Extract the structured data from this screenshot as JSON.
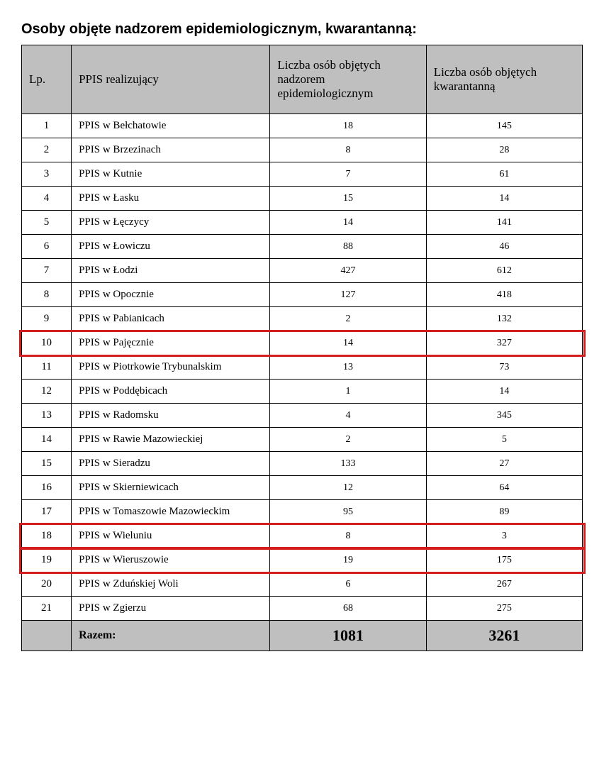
{
  "title": "Osoby objęte nadzorem epidemiologicznym, kwarantanną:",
  "headers": {
    "lp": "Lp.",
    "name": "PPIS realizujący",
    "col1": "Liczba osób objętych nadzorem epidemiologicznym",
    "col2": "Liczba osób objętych kwarantanną"
  },
  "rows": [
    {
      "lp": "1",
      "name": "PPIS w Bełchatowie",
      "v1": "18",
      "v2": "145",
      "hl": false
    },
    {
      "lp": "2",
      "name": "PPIS w Brzezinach",
      "v1": "8",
      "v2": "28",
      "hl": false
    },
    {
      "lp": "3",
      "name": "PPIS w Kutnie",
      "v1": "7",
      "v2": "61",
      "hl": false
    },
    {
      "lp": "4",
      "name": "PPIS w Łasku",
      "v1": "15",
      "v2": "14",
      "hl": false
    },
    {
      "lp": "5",
      "name": "PPIS w Łęczycy",
      "v1": "14",
      "v2": "141",
      "hl": false
    },
    {
      "lp": "6",
      "name": "PPIS w Łowiczu",
      "v1": "88",
      "v2": "46",
      "hl": false
    },
    {
      "lp": "7",
      "name": "PPIS w Łodzi",
      "v1": "427",
      "v2": "612",
      "hl": false
    },
    {
      "lp": "8",
      "name": "PPIS w Opocznie",
      "v1": "127",
      "v2": "418",
      "hl": false
    },
    {
      "lp": "9",
      "name": "PPIS w Pabianicach",
      "v1": "2",
      "v2": "132",
      "hl": false
    },
    {
      "lp": "10",
      "name": "PPIS w Pajęcznie",
      "v1": "14",
      "v2": "327",
      "hl": true
    },
    {
      "lp": "11",
      "name": "PPIS w Piotrkowie Trybunalskim",
      "v1": "13",
      "v2": "73",
      "hl": false
    },
    {
      "lp": "12",
      "name": "PPIS w Poddębicach",
      "v1": "1",
      "v2": "14",
      "hl": false
    },
    {
      "lp": "13",
      "name": "PPIS w Radomsku",
      "v1": "4",
      "v2": "345",
      "hl": false
    },
    {
      "lp": "14",
      "name": "PPIS w Rawie Mazowieckiej",
      "v1": "2",
      "v2": "5",
      "hl": false
    },
    {
      "lp": "15",
      "name": "PPIS w Sieradzu",
      "v1": "133",
      "v2": "27",
      "hl": false
    },
    {
      "lp": "16",
      "name": "PPIS w Skierniewicach",
      "v1": "12",
      "v2": "64",
      "hl": false
    },
    {
      "lp": "17",
      "name": "PPIS w Tomaszowie Mazowieckim",
      "v1": "95",
      "v2": "89",
      "hl": false
    },
    {
      "lp": "18",
      "name": "PPIS w Wieluniu",
      "v1": "8",
      "v2": "3",
      "hl": true
    },
    {
      "lp": "19",
      "name": "PPIS w Wieruszowie",
      "v1": "19",
      "v2": "175",
      "hl": true
    },
    {
      "lp": "20",
      "name": "PPIS w Zduńskiej Woli",
      "v1": "6",
      "v2": "267",
      "hl": false
    },
    {
      "lp": "21",
      "name": "PPIS w Zgierzu",
      "v1": "68",
      "v2": "275",
      "hl": false
    }
  ],
  "footer": {
    "label": "Razem:",
    "v1": "1081",
    "v2": "3261"
  },
  "highlight_color": "#d41e1e"
}
